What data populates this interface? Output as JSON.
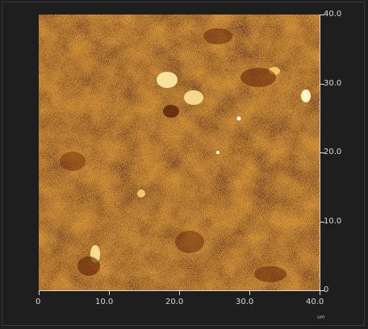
{
  "image": {
    "description_type": "AFM height scan",
    "colors": {
      "background": "#1e1e1e",
      "scan_dark": "#6b2606",
      "scan_mid": "#b5660e",
      "scan_light": "#e9a827",
      "scan_highlight": "#fff2b0",
      "axis": "#d9d9d9"
    }
  },
  "axes": {
    "x_ticks": [
      "0",
      "10.0",
      "20.0",
      "30.0",
      "40.0"
    ],
    "y_ticks": [
      "40.0",
      "30.0",
      "20.0",
      "10.0",
      "0"
    ],
    "unit": "um"
  }
}
